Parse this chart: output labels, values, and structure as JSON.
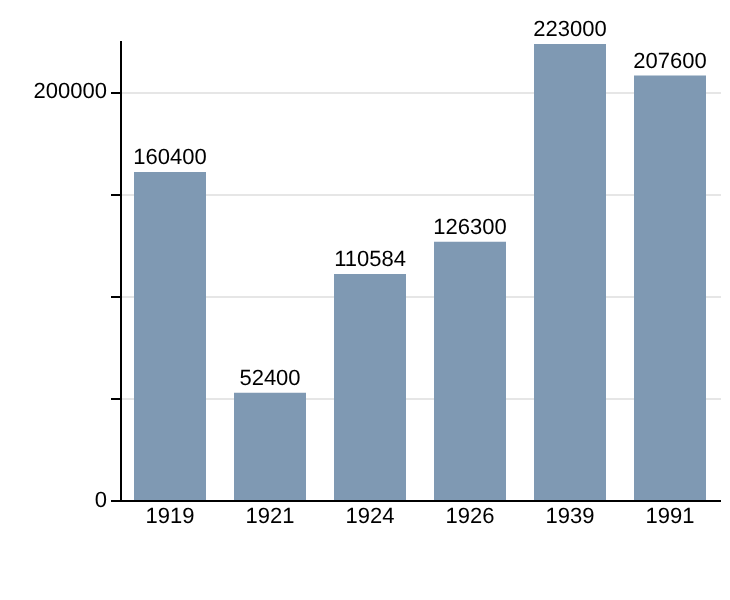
{
  "chart_data": {
    "type": "bar",
    "categories": [
      "1919",
      "1921",
      "1924",
      "1926",
      "1939",
      "1991"
    ],
    "values": [
      160400,
      52400,
      110584,
      126300,
      223000,
      207600
    ],
    "color": "#7f99b3",
    "ylim": [
      0,
      225000
    ],
    "yticks": [
      0,
      {
        "value": 50000,
        "label": null
      },
      {
        "value": 100000,
        "label": null
      },
      {
        "value": 150000,
        "label": null
      },
      200000
    ],
    "grid": "y",
    "data_labels": true
  }
}
